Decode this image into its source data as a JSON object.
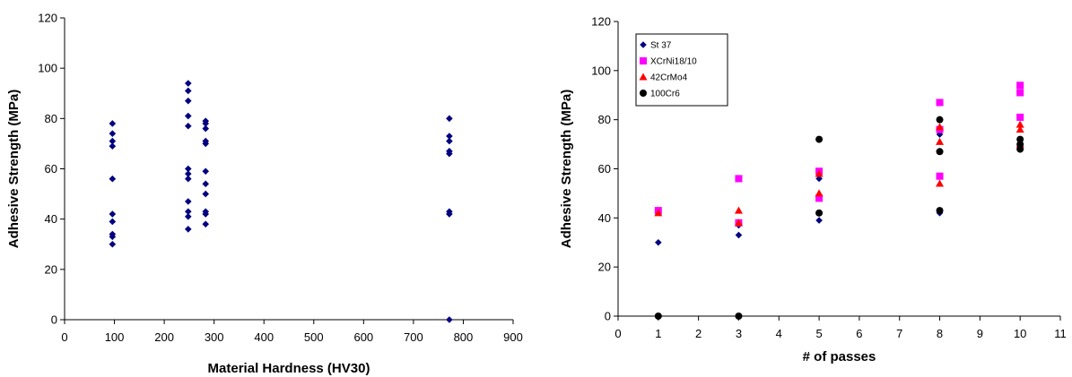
{
  "chart_data": [
    {
      "type": "scatter",
      "xlabel": "Material Hardness (HV30)",
      "ylabel": "Adhesive Strength  (MPa)",
      "xlim": [
        0,
        900
      ],
      "ylim": [
        0,
        120
      ],
      "xticks": [
        "0",
        "100",
        "200",
        "300",
        "400",
        "500",
        "600",
        "700",
        "800",
        "900"
      ],
      "yticks": [
        "0",
        "20",
        "40",
        "60",
        "80",
        "100",
        "120"
      ],
      "grid": false,
      "series": [
        {
          "color": "#000080",
          "marker": "diamond",
          "points": [
            [
              96,
              78
            ],
            [
              96,
              74
            ],
            [
              96,
              71
            ],
            [
              96,
              69
            ],
            [
              96,
              56
            ],
            [
              96,
              42
            ],
            [
              96,
              39
            ],
            [
              96,
              34
            ],
            [
              96,
              33
            ],
            [
              96,
              30
            ],
            [
              248,
              94
            ],
            [
              248,
              91
            ],
            [
              248,
              87
            ],
            [
              248,
              81
            ],
            [
              248,
              77
            ],
            [
              248,
              60
            ],
            [
              248,
              58
            ],
            [
              248,
              56
            ],
            [
              248,
              47
            ],
            [
              248,
              43
            ],
            [
              248,
              41
            ],
            [
              248,
              36
            ],
            [
              283,
              79
            ],
            [
              283,
              78
            ],
            [
              283,
              76
            ],
            [
              283,
              71
            ],
            [
              283,
              70
            ],
            [
              283,
              59
            ],
            [
              283,
              54
            ],
            [
              283,
              50
            ],
            [
              283,
              43
            ],
            [
              283,
              42
            ],
            [
              283,
              38
            ],
            [
              772,
              80
            ],
            [
              772,
              73
            ],
            [
              772,
              71
            ],
            [
              772,
              67
            ],
            [
              772,
              66
            ],
            [
              772,
              43
            ],
            [
              772,
              42
            ],
            [
              772,
              0
            ]
          ]
        }
      ]
    },
    {
      "type": "scatter",
      "xlabel": "# of passes",
      "ylabel": "Adhesive Strength  (MPa)",
      "xlim": [
        0,
        11
      ],
      "ylim": [
        0,
        120
      ],
      "xticks": [
        "0",
        "1",
        "2",
        "3",
        "4",
        "5",
        "6",
        "7",
        "8",
        "9",
        "10",
        "11"
      ],
      "yticks": [
        "0",
        "20",
        "40",
        "60",
        "80",
        "100",
        "120"
      ],
      "grid": false,
      "legend": "top-left",
      "series": [
        {
          "name": "St 37",
          "color": "#000080",
          "marker": "diamond",
          "points": [
            [
              1,
              30
            ],
            [
              3,
              33
            ],
            [
              3,
              37
            ],
            [
              5,
              56
            ],
            [
              5,
              39
            ],
            [
              8,
              74
            ],
            [
              8,
              42
            ],
            [
              10,
              72
            ],
            [
              10,
              68
            ]
          ]
        },
        {
          "name": "XCrNi18/10",
          "color": "#ff00ff",
          "marker": "square",
          "points": [
            [
              1,
              43
            ],
            [
              3,
              56
            ],
            [
              3,
              38
            ],
            [
              5,
              59
            ],
            [
              5,
              48
            ],
            [
              8,
              87
            ],
            [
              8,
              76
            ],
            [
              8,
              57
            ],
            [
              10,
              94
            ],
            [
              10,
              91
            ],
            [
              10,
              81
            ]
          ]
        },
        {
          "name": "42CrMo4",
          "color": "#ff0000",
          "marker": "triangle",
          "points": [
            [
              1,
              42
            ],
            [
              3,
              43
            ],
            [
              3,
              38
            ],
            [
              5,
              58
            ],
            [
              5,
              50
            ],
            [
              8,
              77
            ],
            [
              8,
              71
            ],
            [
              8,
              54
            ],
            [
              10,
              78
            ],
            [
              10,
              76
            ],
            [
              10,
              70
            ]
          ]
        },
        {
          "name": "100Cr6",
          "color": "#000000",
          "marker": "circle",
          "points": [
            [
              1,
              0
            ],
            [
              3,
              0
            ],
            [
              5,
              72
            ],
            [
              5,
              42
            ],
            [
              8,
              80
            ],
            [
              8,
              67
            ],
            [
              8,
              43
            ],
            [
              10,
              72
            ],
            [
              10,
              70
            ],
            [
              10,
              68
            ]
          ]
        }
      ]
    }
  ]
}
